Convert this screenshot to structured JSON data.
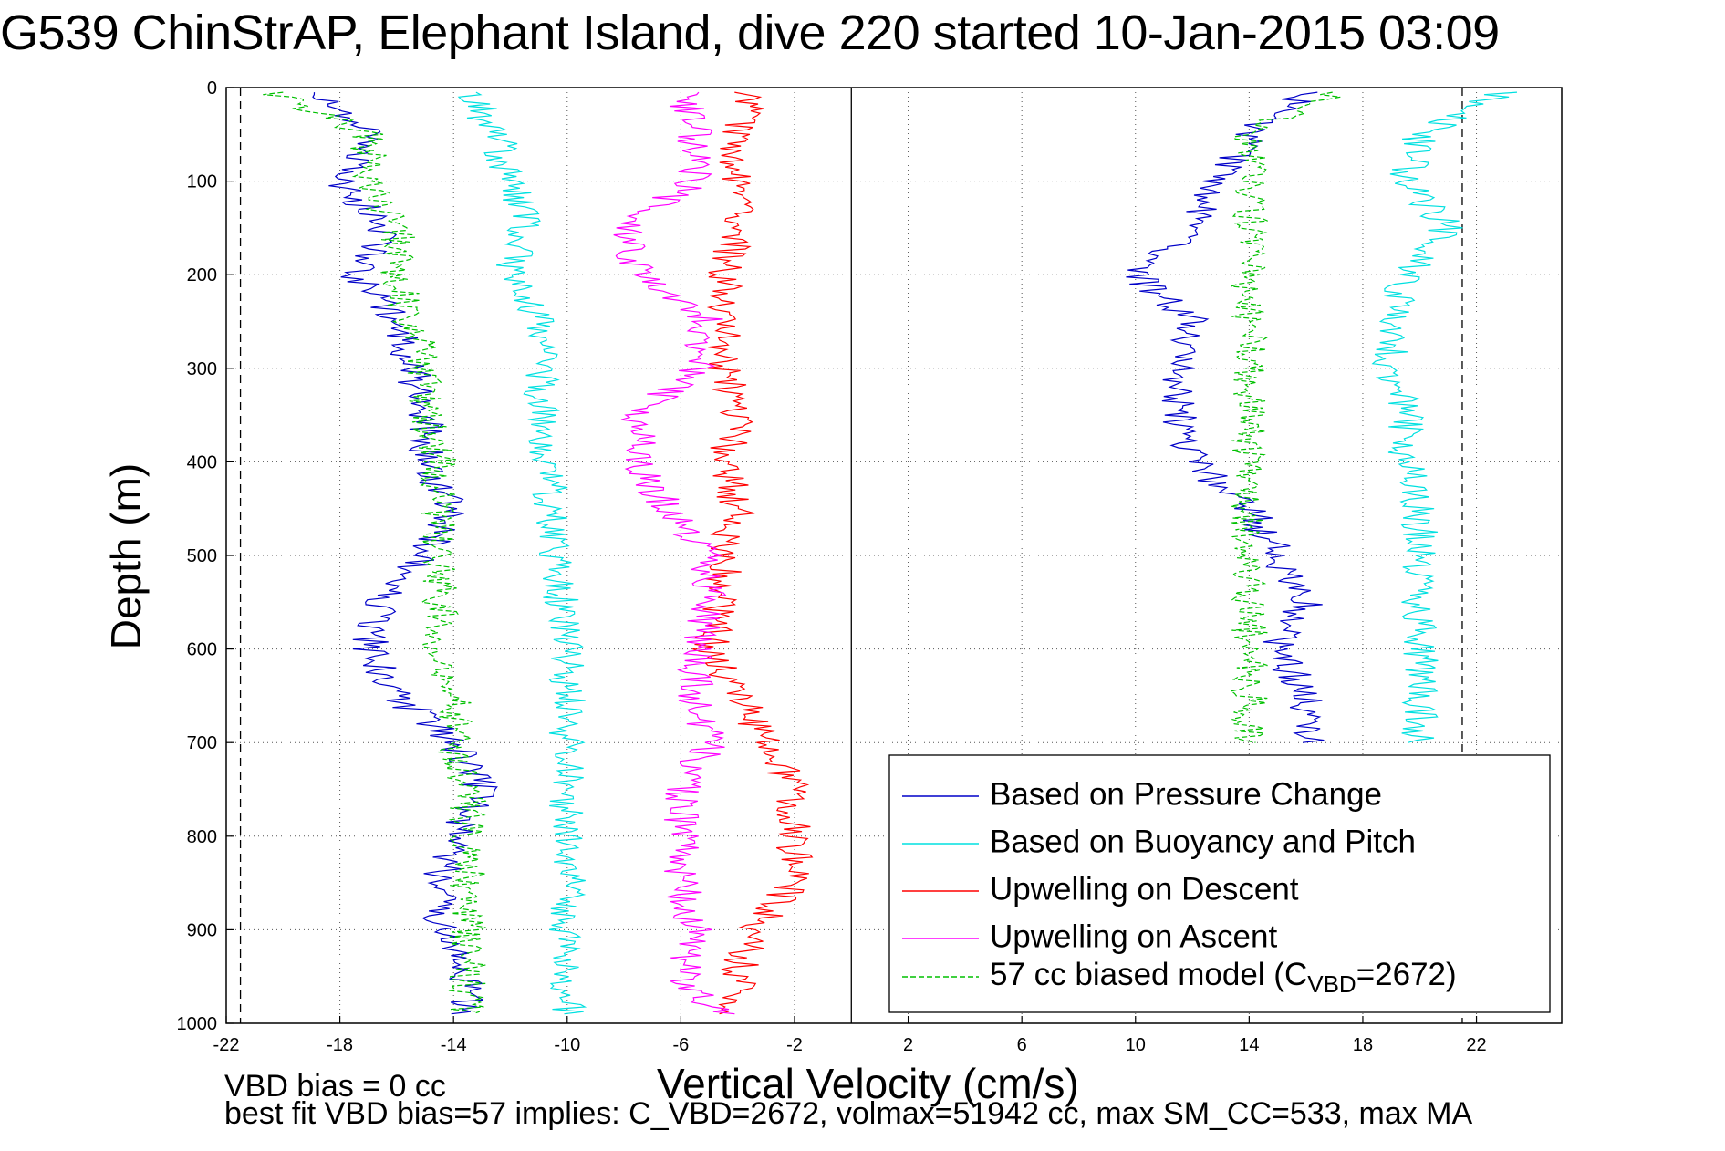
{
  "chart_data": {
    "type": "line",
    "title": "G539 ChinStrAP, Elephant Island, dive 220 started 10-Jan-2015 03:09",
    "xlabel": "Vertical Velocity (cm/s)",
    "ylabel": "Depth (m)",
    "xlim": [
      -22,
      25
    ],
    "ylim": [
      1000,
      0
    ],
    "y_reversed": true,
    "grid": true,
    "legend_position": "lower-right",
    "x_ticks": [
      "-22",
      "-18",
      "-14",
      "-10",
      "-6",
      "-2",
      "2",
      "6",
      "10",
      "14",
      "18",
      "22"
    ],
    "y_ticks": [
      "0",
      "100",
      "200",
      "300",
      "400",
      "500",
      "600",
      "700",
      "800",
      "900",
      "1000"
    ],
    "vertical_reference_lines": [
      -21.5,
      0,
      21.5
    ],
    "depth": [
      5,
      50,
      100,
      150,
      200,
      250,
      300,
      350,
      400,
      450,
      500,
      550,
      600,
      650,
      700,
      750,
      800,
      850,
      900,
      950,
      990
    ],
    "series": [
      {
        "name": "Based on Pressure Change",
        "color": "#0000c8",
        "style": "solid",
        "panels": [
          {
            "x": [
              -19,
              -17,
              -18,
              -16.5,
              -17.5,
              -16,
              -15.5,
              -15,
              -15,
              -14,
              -15,
              -16.5,
              -17,
              -16,
              -14,
              -13,
              -14,
              -14.5,
              -14.5,
              -13.5,
              -13.5
            ]
          },
          {
            "x": [
              16,
              14,
              13,
              12,
              10,
              12,
              11.5,
              11.5,
              12,
              14,
              15,
              16,
              15,
              16,
              16,
              null,
              null,
              null,
              null,
              null,
              null
            ]
          }
        ]
      },
      {
        "name": "Based on Buoyancy and Pitch",
        "color": "#00e0e0",
        "style": "solid",
        "panels": [
          {
            "x": [
              -13.5,
              -12.5,
              -12,
              -11.5,
              -12,
              -11,
              -11,
              -10.8,
              -10.8,
              -10.5,
              -10.5,
              -10.2,
              -10,
              -10,
              -10,
              -10,
              -10,
              -10,
              -10,
              -10,
              -10
            ]
          },
          {
            "x": [
              23,
              20,
              19.5,
              21,
              19.5,
              19,
              19,
              19.5,
              19.5,
              20,
              20,
              20,
              20,
              20,
              20,
              null,
              null,
              null,
              null,
              null,
              null
            ]
          }
        ]
      },
      {
        "name": "Upwelling on Descent",
        "color": "#ff0000",
        "style": "solid",
        "panels": [
          {
            "x": [
              -3.5,
              -4,
              -4,
              -4,
              -4.5,
              -4.5,
              -4.5,
              -4,
              -4.5,
              -4,
              -4.5,
              -4.5,
              -5,
              -4,
              -3,
              -2,
              -2,
              -2,
              -3.5,
              -4,
              -4
            ]
          }
        ]
      },
      {
        "name": "Upwelling on Ascent",
        "color": "#ff00ff",
        "style": "solid",
        "panels": [
          {
            "x": [
              -6,
              -5.5,
              -5.5,
              -8,
              -7.5,
              -5,
              -5.5,
              -7.5,
              -7.5,
              -6.5,
              -5,
              -5,
              -5.5,
              -5.5,
              -5,
              -6,
              -6,
              -6,
              -5.5,
              -6,
              -4.5
            ]
          }
        ]
      },
      {
        "name": "57 cc biased model (C_VBD=2672)",
        "color": "#00c000",
        "style": "dashed",
        "panels": [
          {
            "x": [
              -20.5,
              -17,
              -17,
              -16,
              -16,
              -15.5,
              -15,
              -15,
              -14.5,
              -14.5,
              -14.5,
              -14.5,
              -14.5,
              -14,
              -14,
              -13.5,
              -13.5,
              -13.5,
              -13.5,
              -13.5,
              -13.5
            ]
          },
          {
            "x": [
              17,
              14,
              14,
              14,
              14,
              14,
              14,
              14,
              14,
              14,
              14,
              14,
              14,
              14,
              14,
              null,
              null,
              null,
              null,
              null,
              null
            ]
          }
        ]
      }
    ],
    "legend": {
      "entries": [
        {
          "label": "Based on Pressure Change",
          "color": "#0000c8",
          "style": "solid"
        },
        {
          "label": "Based on Buoyancy and Pitch",
          "color": "#00e0e0",
          "style": "solid"
        },
        {
          "label": "Upwelling on Descent",
          "color": "#ff0000",
          "style": "solid"
        },
        {
          "label": "Upwelling on Ascent",
          "color": "#ff00ff",
          "style": "solid"
        },
        {
          "label": "57 cc biased model (C",
          "sub": "VBD",
          "suffix": "=2672)",
          "color": "#00c000",
          "style": "dashed"
        }
      ]
    }
  },
  "footer": {
    "line1": "VBD bias = 0 cc",
    "line2": "best fit VBD bias=57 implies: C_VBD=2672, volmax=51942 cc, max SM_CC=533, max MA"
  }
}
